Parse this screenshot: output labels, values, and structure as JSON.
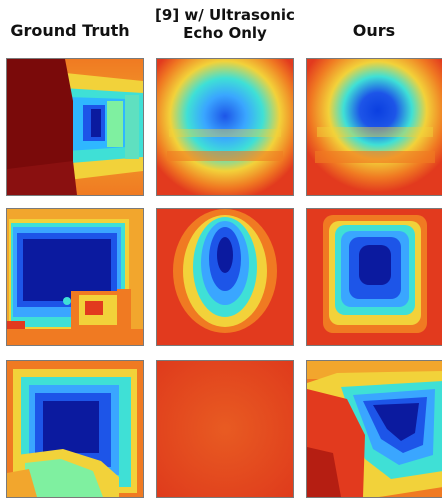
{
  "headers": {
    "ground_truth": "Ground Truth",
    "baseline_line1": "[9] w/ Ultrasonic",
    "baseline_line2": "Echo Only",
    "ours": "Ours"
  },
  "colormap": {
    "dark_red": "#7a0a0a",
    "red": "#e23a1e",
    "orange": "#f07a22",
    "yellow": "#f2d23a",
    "cyan": "#3fe0d6",
    "light_blue": "#3aa6ff",
    "blue": "#1d55e8",
    "dark_blue": "#0b1a9f"
  }
}
